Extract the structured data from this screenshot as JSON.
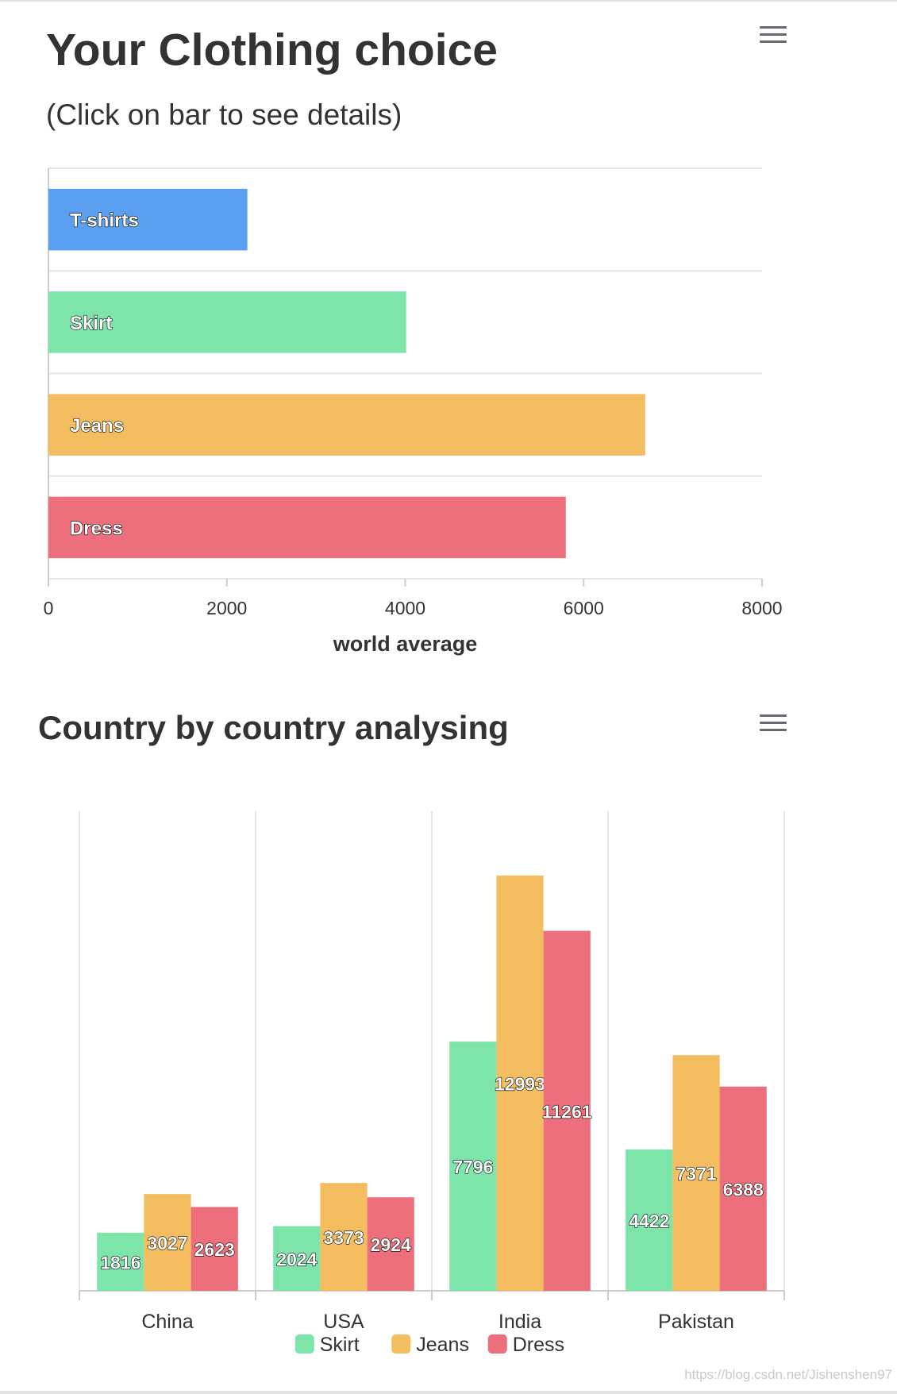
{
  "chart1": {
    "title": "Your Clothing choice",
    "subtitle": "(Click on bar to see details)"
  },
  "chart2": {
    "title": "Country by country analysing"
  },
  "watermark": "https://blog.csdn.net/Jishenshen97",
  "chart_data": [
    {
      "type": "bar",
      "orientation": "horizontal",
      "title": "Your Clothing choice",
      "subtitle": "(Click on bar to see details)",
      "categories": [
        "T-shirts",
        "Skirt",
        "Jeans",
        "Dress"
      ],
      "values": [
        2230,
        4010,
        6690,
        5800
      ],
      "colors": [
        "#5a9ff0",
        "#7de5aa",
        "#f4bd60",
        "#ec6f7b"
      ],
      "xlabel": "world average",
      "ylabel": "",
      "xlim": [
        0,
        8000
      ],
      "xticks": [
        "0",
        "2000",
        "4000",
        "6000",
        "8000"
      ],
      "grid": true,
      "legend": "none"
    },
    {
      "type": "bar",
      "orientation": "vertical",
      "title": "Country by country analysing",
      "categories": [
        "China",
        "USA",
        "India",
        "Pakistan"
      ],
      "series": [
        {
          "name": "Skirt",
          "color": "#7de5aa",
          "values": [
            1816,
            2024,
            7796,
            4422
          ]
        },
        {
          "name": "Jeans",
          "color": "#f4bd60",
          "values": [
            3027,
            3373,
            12993,
            7371
          ]
        },
        {
          "name": "Dress",
          "color": "#ec6f7b",
          "values": [
            2623,
            2924,
            11261,
            6388
          ]
        }
      ],
      "xlabel": "",
      "ylabel": "",
      "ylim": [
        0,
        15000
      ],
      "grid": true,
      "data_labels": true,
      "legend": "bottom-center"
    }
  ]
}
